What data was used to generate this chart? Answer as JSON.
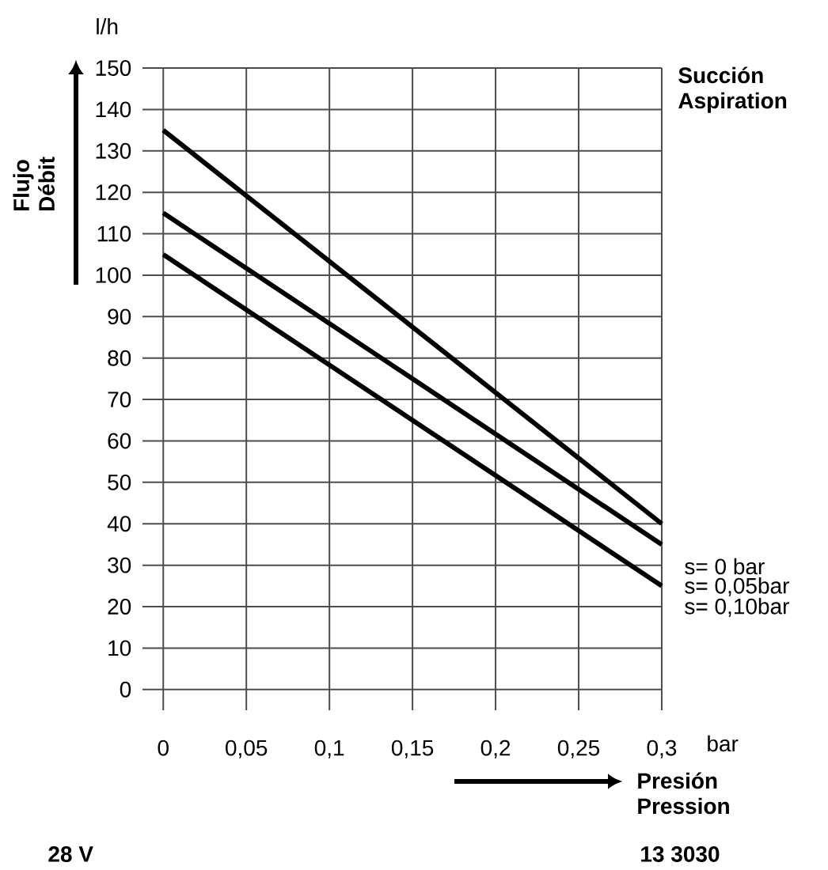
{
  "chart_data": {
    "type": "line",
    "xlabel": "Presión Pression",
    "ylabel": "Flujo Débit",
    "x": [
      0,
      0.3
    ],
    "series": [
      {
        "name": "s= 0 bar",
        "color": "#000000",
        "values": [
          135,
          40
        ]
      },
      {
        "name": "s= 0,05bar",
        "color": "#000000",
        "values": [
          115,
          35
        ]
      },
      {
        "name": "s= 0,10bar",
        "color": "#000000",
        "values": [
          105,
          25
        ]
      }
    ],
    "xlim": [
      -0.0125,
      0.3
    ],
    "ylim": [
      -5,
      150
    ],
    "xticks": [
      0,
      {
        "value": 0.05,
        "label": "0,05"
      },
      {
        "value": 0.1,
        "label": "0,1"
      },
      {
        "value": 0.15,
        "label": "0,15"
      },
      {
        "value": 0.2,
        "label": "0,2"
      },
      {
        "value": 0.25,
        "label": "0,25"
      },
      {
        "value": 0.3,
        "label": "0,3"
      }
    ],
    "yticks": [
      0,
      10,
      20,
      30,
      40,
      50,
      60,
      70,
      80,
      90,
      100,
      110,
      120,
      130,
      140,
      150
    ],
    "grid": true,
    "annotations": [
      "l/h",
      "bar",
      "Succión Aspiration",
      "28 V",
      "13 3030"
    ]
  }
}
